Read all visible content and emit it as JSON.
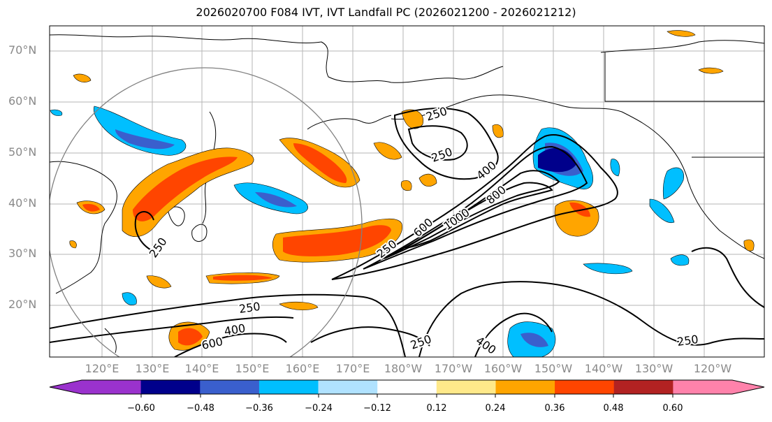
{
  "title": "2026020700 F084 IVT, IVT Landfall PC (2026021200 - 2026021212)",
  "lat_labels": [
    "70°N",
    "60°N",
    "50°N",
    "40°N",
    "30°N",
    "20°N"
  ],
  "lon_labels": [
    "120°E",
    "130°E",
    "140°E",
    "150°E",
    "160°E",
    "170°E",
    "180°W",
    "170°W",
    "160°W",
    "150°W",
    "140°W",
    "130°W",
    "120°W"
  ],
  "contour_labels": [
    "250",
    "250",
    "250",
    "400",
    "600",
    "800",
    "1000",
    "250",
    "250",
    "400",
    "600",
    "250",
    "400",
    "250"
  ],
  "colorbar": {
    "colors": [
      "#9a32cd",
      "#00008b",
      "#3a5fcd",
      "#00bfff",
      "#b0e2ff",
      "#ffffff",
      "#ffe98a",
      "#ffa500",
      "#ff4500",
      "#b22222",
      "#ff82ab"
    ],
    "tick_labels": [
      "−0.60",
      "−0.48",
      "−0.36",
      "−0.24",
      "−0.12",
      "0.12",
      "0.24",
      "0.36",
      "0.48",
      "0.60"
    ]
  }
}
